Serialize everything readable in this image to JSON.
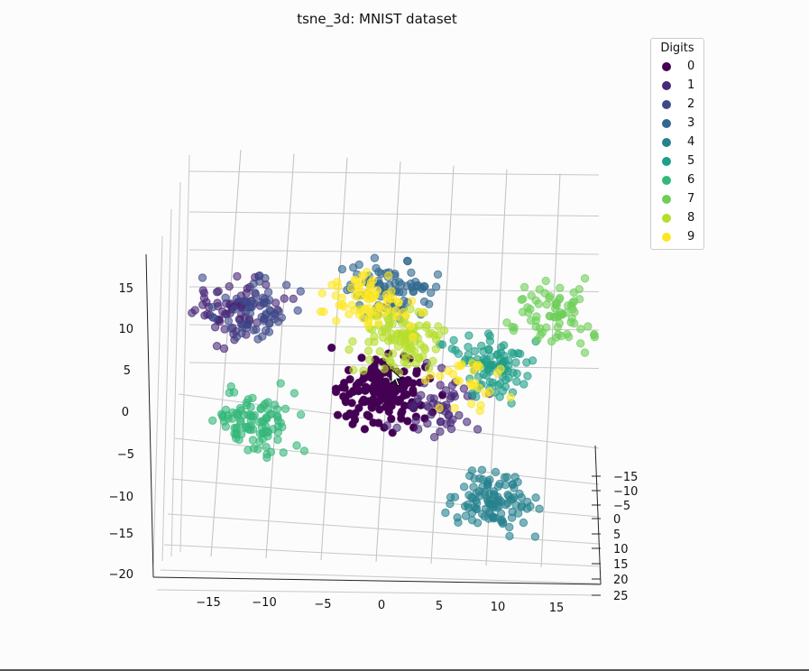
{
  "chart_data": {
    "type": "scatter",
    "projection": "3d",
    "title": "tsne_3d: MNIST dataset",
    "legend": {
      "title": "Digits",
      "placement": "top-right"
    },
    "x_ticks": [
      "−15",
      "−10",
      "−5",
      "0",
      "5",
      "10",
      "15"
    ],
    "y_ticks": [
      "−15",
      "−10",
      "−5",
      "0",
      "5",
      "10",
      "15",
      "20",
      "25"
    ],
    "z_ticks": [
      "15",
      "10",
      "5",
      "0",
      "−5",
      "−10",
      "−15",
      "−20"
    ],
    "xlim": [
      -20,
      20
    ],
    "ylim": [
      -20,
      25
    ],
    "zlim": [
      -20,
      18
    ],
    "grid": true,
    "series": [
      {
        "name": "0",
        "color": "#440154",
        "clusters": [
          {
            "x": 0,
            "y": 0,
            "z": 2,
            "n": 150
          }
        ]
      },
      {
        "name": "1",
        "color": "#482878",
        "clusters": [
          {
            "x": -14,
            "y": 8,
            "z": 15,
            "n": 75
          },
          {
            "x": 5,
            "y": 2,
            "z": 1,
            "n": 50
          }
        ]
      },
      {
        "name": "2",
        "color": "#3e4989",
        "clusters": [
          {
            "x": -12,
            "y": 5,
            "z": 14,
            "n": 60
          }
        ]
      },
      {
        "name": "3",
        "color": "#31688e",
        "clusters": [
          {
            "x": 2,
            "y": -8,
            "z": 12,
            "n": 80
          }
        ]
      },
      {
        "name": "4",
        "color": "#26828e",
        "clusters": [
          {
            "x": 8,
            "y": 10,
            "z": -8,
            "n": 110
          }
        ]
      },
      {
        "name": "5",
        "color": "#1f9e89",
        "clusters": [
          {
            "x": 10,
            "y": 0,
            "z": 5,
            "n": 95
          }
        ]
      },
      {
        "name": "6",
        "color": "#35b779",
        "clusters": [
          {
            "x": -12,
            "y": 5,
            "z": 0,
            "n": 100
          }
        ]
      },
      {
        "name": "7",
        "color": "#6ece58",
        "clusters": [
          {
            "x": 16,
            "y": -5,
            "z": 10,
            "n": 75
          }
        ]
      },
      {
        "name": "8",
        "color": "#b5de2b",
        "clusters": [
          {
            "x": 2,
            "y": -2,
            "z": 8,
            "n": 100
          }
        ]
      },
      {
        "name": "9",
        "color": "#fde725",
        "clusters": [
          {
            "x": 0,
            "y": -5,
            "z": 12,
            "n": 80
          },
          {
            "x": 7,
            "y": 3,
            "z": 4,
            "n": 30
          }
        ]
      }
    ]
  }
}
